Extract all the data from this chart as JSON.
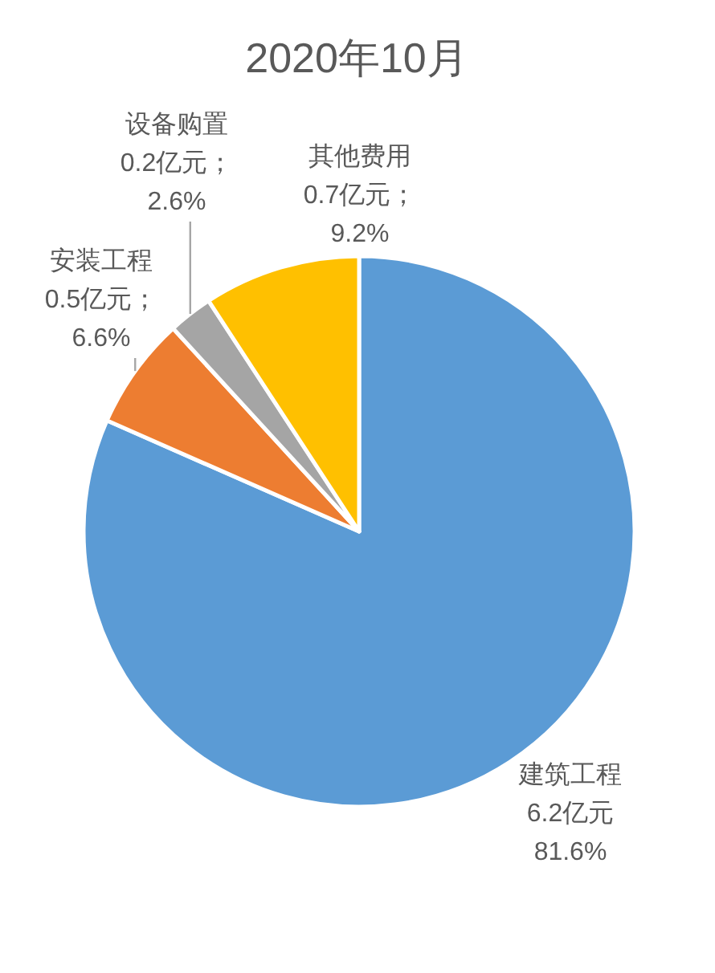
{
  "chart_data": {
    "type": "pie",
    "title": "2020年10月",
    "categories": [
      "建筑工程",
      "安装工程",
      "设备购置",
      "其他费用"
    ],
    "values": [
      81.6,
      6.6,
      2.6,
      9.2
    ],
    "colors": [
      "#5b9bd5",
      "#ed7d31",
      "#a5a5a5",
      "#ffc000"
    ],
    "value_labels": [
      "6.2亿元\n81.6%",
      "0.5亿元；\n6.6%",
      "0.2亿元；\n2.6%",
      "0.7亿元；\n9.2%"
    ]
  }
}
